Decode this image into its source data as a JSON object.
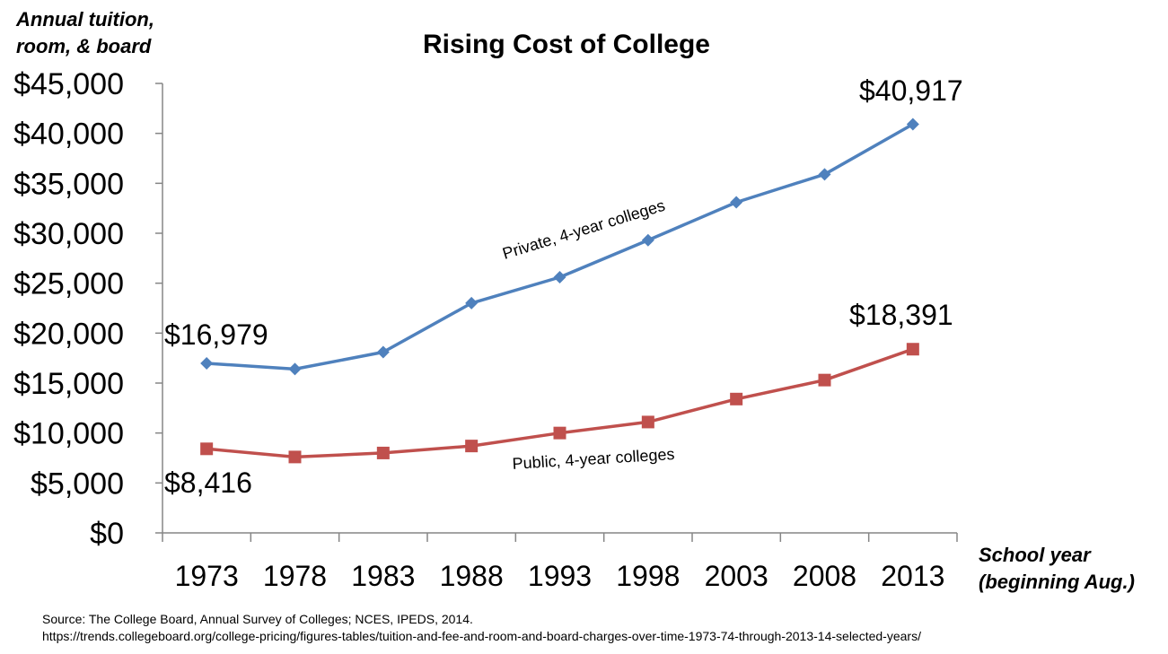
{
  "chart_data": {
    "type": "line",
    "title": "Rising Cost of College",
    "ylabel": [
      "Annual tuition,",
      "room, & board"
    ],
    "xlabel": [
      "School year",
      "(beginning Aug.)"
    ],
    "categories": [
      "1973",
      "1978",
      "1983",
      "1988",
      "1993",
      "1998",
      "2003",
      "2008",
      "2013"
    ],
    "ylim": [
      0,
      45000
    ],
    "y_ticks": [
      0,
      5000,
      10000,
      15000,
      20000,
      25000,
      30000,
      35000,
      40000,
      45000
    ],
    "y_tick_labels": [
      "$0",
      "$5,000",
      "$10,000",
      "$15,000",
      "$20,000",
      "$25,000",
      "$30,000",
      "$35,000",
      "$40,000",
      "$45,000"
    ],
    "grid": false,
    "series": [
      {
        "name": "Private, 4-year colleges",
        "color": "#4F81BD",
        "marker": "diamond",
        "values": [
          16979,
          16400,
          18100,
          23000,
          25600,
          29300,
          33100,
          35900,
          40917
        ]
      },
      {
        "name": "Public, 4-year colleges",
        "color": "#C0504D",
        "marker": "square",
        "values": [
          8416,
          7600,
          8000,
          8700,
          10000,
          11100,
          13400,
          15300,
          18391
        ]
      }
    ],
    "annotations": [
      {
        "text": "$16,979"
      },
      {
        "text": "$40,917"
      },
      {
        "text": "$8,416"
      },
      {
        "text": "$18,391"
      }
    ]
  },
  "source": {
    "line1": "Source: The College Board, Annual Survey of Colleges; NCES, IPEDS, 2014.",
    "line2": "https://trends.collegeboard.org/college-pricing/figures-tables/tuition-and-fee-and-room-and-board-charges-over-time-1973-74-through-2013-14-selected-years/"
  }
}
